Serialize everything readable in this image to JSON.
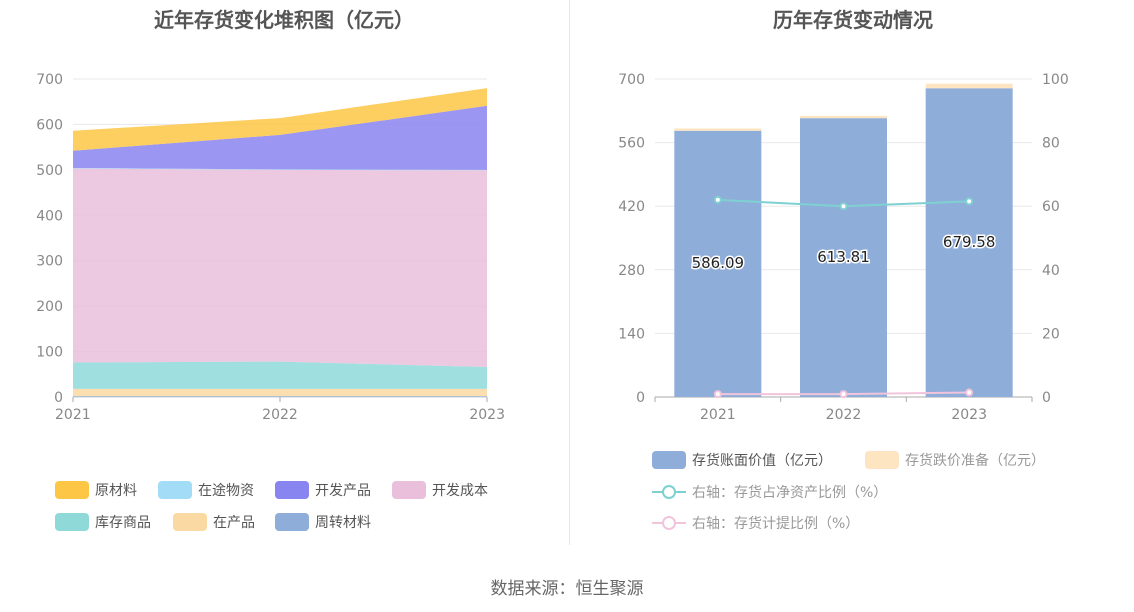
{
  "source": "数据来源：恒生聚源",
  "chart_data": [
    {
      "type": "area",
      "stacked": true,
      "title": "近年存货变化堆积图（亿元）",
      "categories": [
        "2021",
        "2022",
        "2023"
      ],
      "ylim": [
        0,
        700
      ],
      "yticks": [
        0,
        100,
        200,
        300,
        400,
        500,
        600,
        700
      ],
      "grid": true,
      "legend_position": "bottom",
      "series": [
        {
          "name": "周转材料",
          "color": "#8eadd9",
          "values": [
            2,
            2,
            2
          ]
        },
        {
          "name": "在产品",
          "color": "#fbd9a2",
          "values": [
            16,
            16,
            16
          ]
        },
        {
          "name": "库存商品",
          "color": "#8fd9d9",
          "values": [
            58,
            60,
            48
          ]
        },
        {
          "name": "开发成本",
          "color": "#e9bfdc",
          "values": [
            427,
            422,
            433
          ]
        },
        {
          "name": "在途物资",
          "color": "#a3dcf7",
          "values": [
            1,
            1,
            1
          ]
        },
        {
          "name": "开发产品",
          "color": "#8884f0",
          "values": [
            38,
            76,
            141
          ]
        },
        {
          "name": "原材料",
          "color": "#fdc644",
          "values": [
            44,
            37,
            39
          ]
        }
      ],
      "legend_order": [
        "原材料",
        "在途物资",
        "开发产品",
        "开发成本",
        "库存商品",
        "在产品",
        "周转材料"
      ]
    },
    {
      "type": "bar",
      "title": "历年存货变动情况",
      "categories": [
        "2021",
        "2022",
        "2023"
      ],
      "ylim": [
        0,
        700
      ],
      "yticks": [
        0,
        140,
        280,
        420,
        560,
        700
      ],
      "y2lim": [
        0,
        100
      ],
      "y2ticks": [
        0,
        20,
        40,
        60,
        80,
        100
      ],
      "grid": true,
      "legend_position": "bottom",
      "series": [
        {
          "name": "存货账面价值（亿元）",
          "kind": "bar",
          "color": "#8eadd9",
          "values": [
            586.09,
            613.81,
            679.58
          ],
          "labels": [
            "586.09",
            "613.81",
            "679.58"
          ]
        },
        {
          "name": "存货跌价准备（亿元）",
          "kind": "bar",
          "color": "#fde5c2",
          "values": [
            5,
            5,
            10
          ]
        },
        {
          "name": "右轴：存货占净资产比例（%）",
          "kind": "line",
          "axis": "right",
          "color": "#7fd1d1",
          "values": [
            62,
            60,
            61.5
          ]
        },
        {
          "name": "右轴：存货计提比例（%）",
          "kind": "line",
          "axis": "right",
          "color": "#f2c4dc",
          "values": [
            0.9,
            0.9,
            1.4
          ]
        }
      ]
    }
  ]
}
